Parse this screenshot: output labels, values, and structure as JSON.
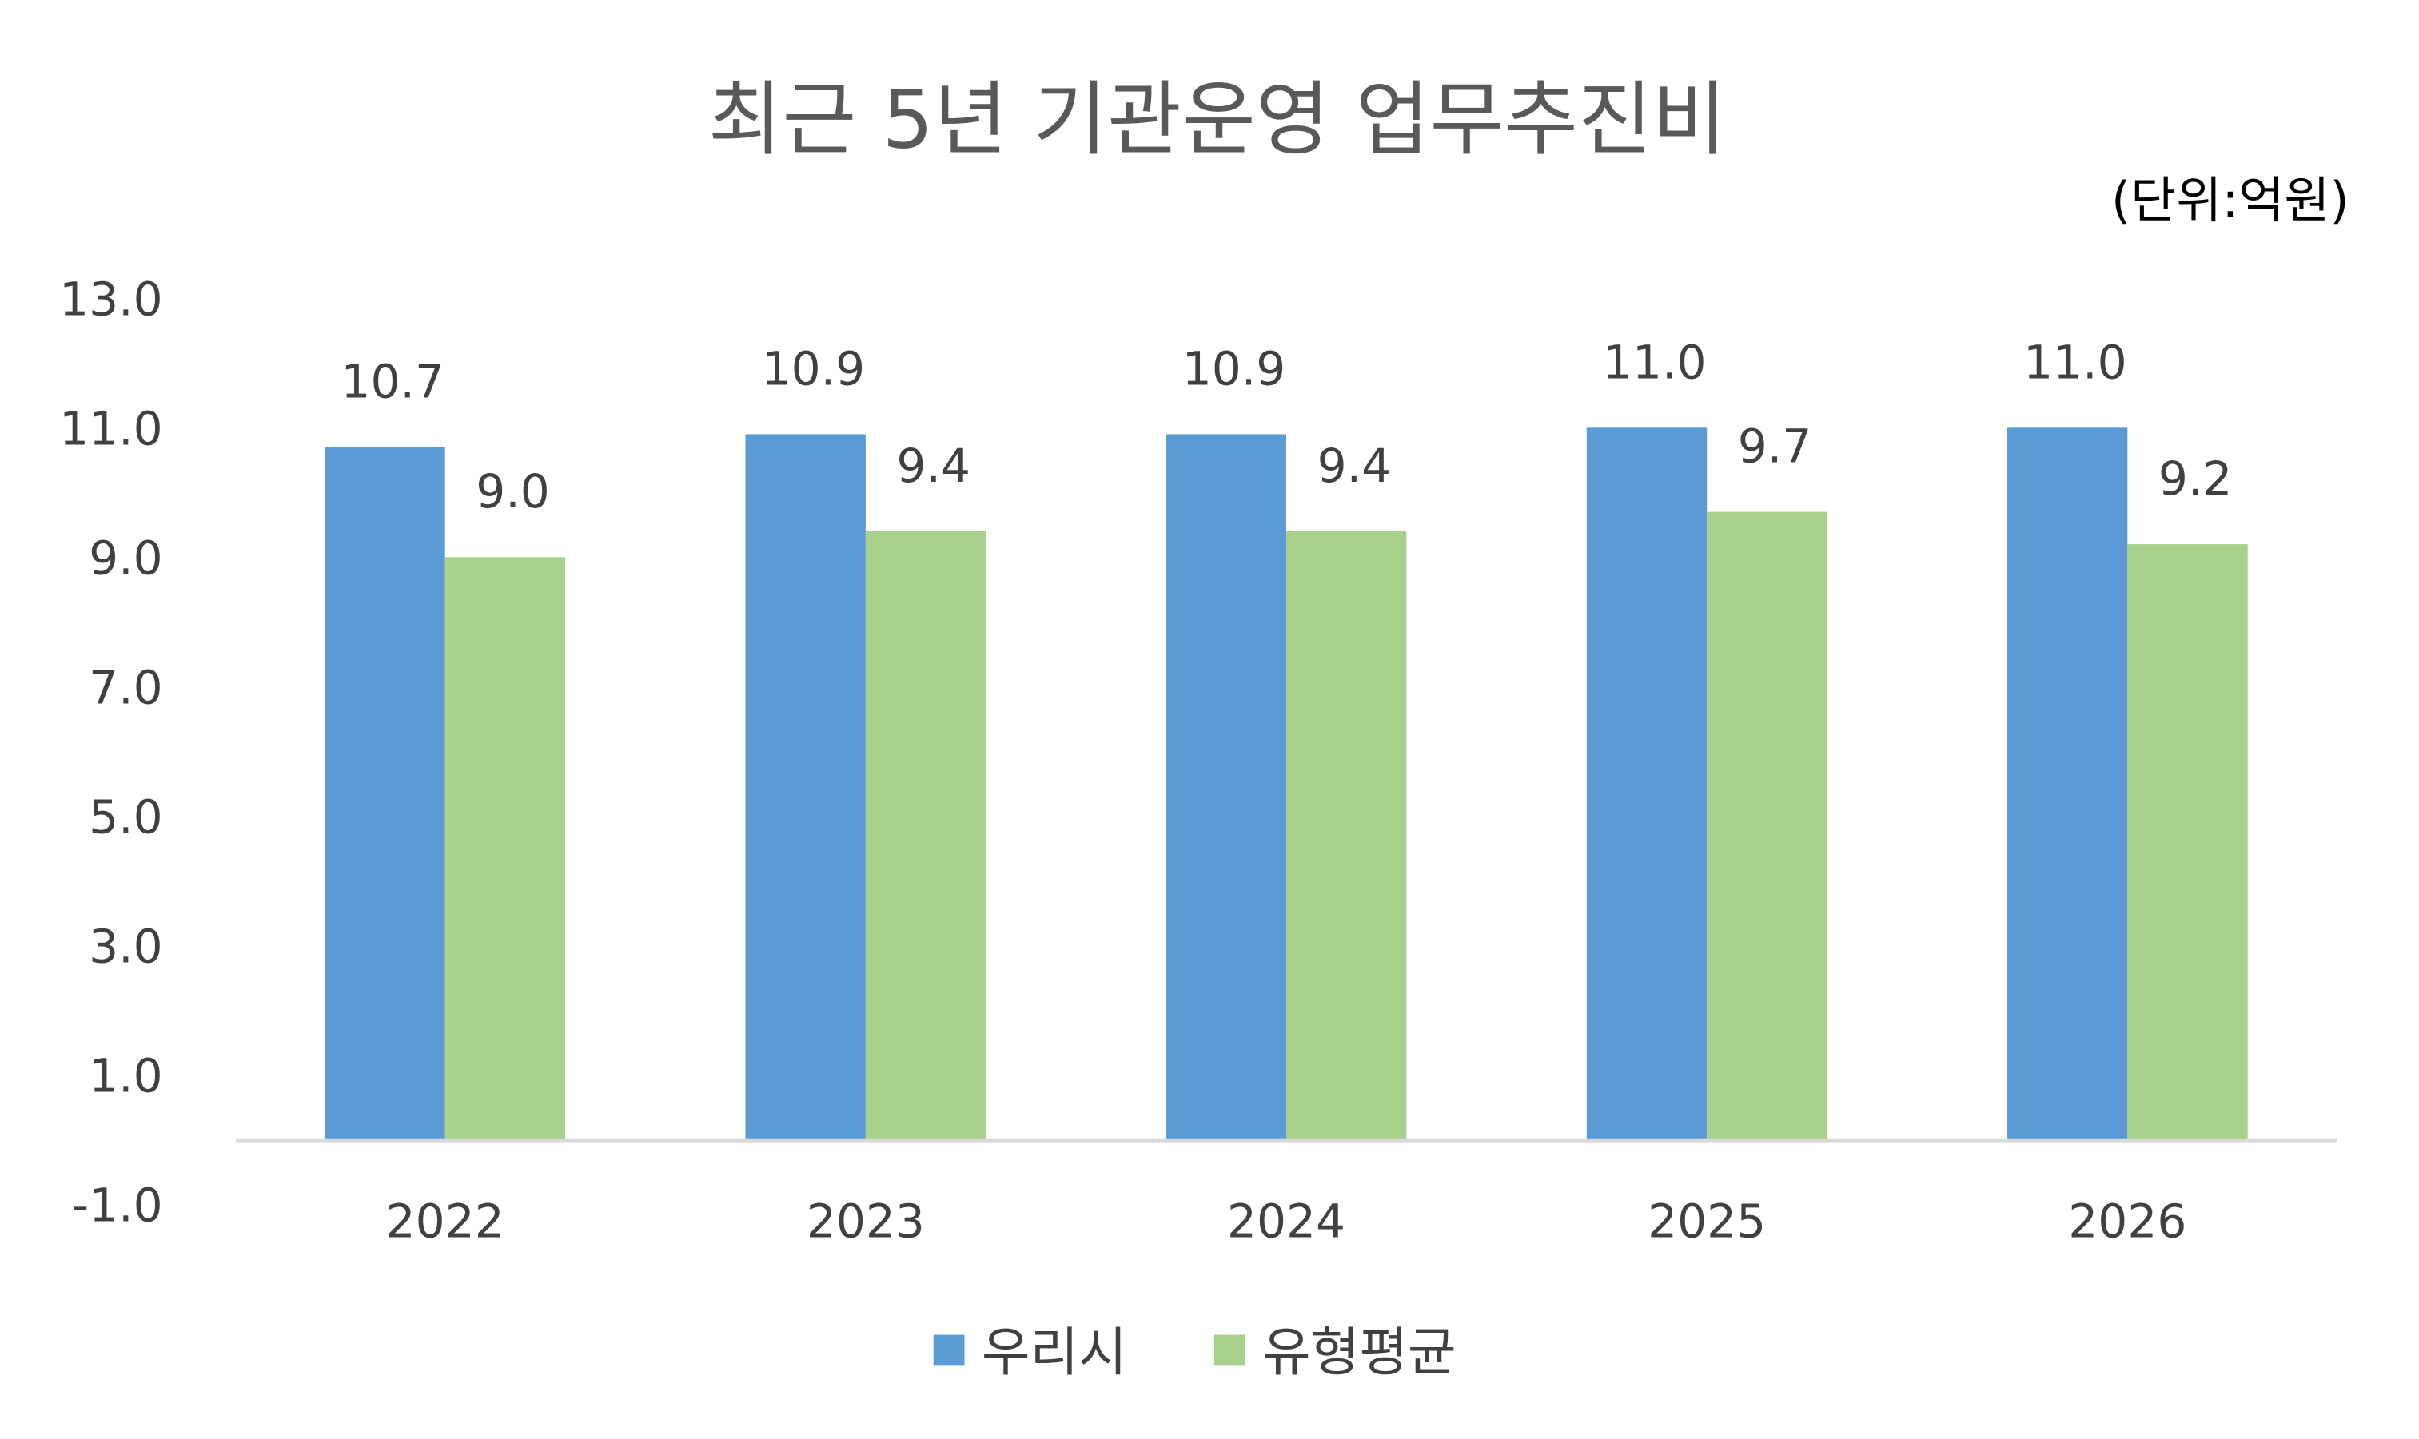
{
  "chart_data": {
    "type": "bar",
    "title": "최근 5년 기관운영 업무추진비",
    "unit_label": "(단위:억원)",
    "categories": [
      "2022",
      "2023",
      "2024",
      "2025",
      "2026"
    ],
    "series": [
      {
        "name": "우리시",
        "color": "#5b9bd5",
        "values": [
          10.7,
          10.9,
          10.9,
          11.0,
          11.0
        ],
        "labels": [
          "10.7",
          "10.9",
          "10.9",
          "11.0",
          "11.0"
        ]
      },
      {
        "name": "유형평균",
        "color": "#a9d18e",
        "values": [
          9.0,
          9.4,
          9.4,
          9.7,
          9.2
        ],
        "labels": [
          "9.0",
          "9.4",
          "9.4",
          "9.7",
          "9.2"
        ]
      }
    ],
    "yticks": [
      "13.0",
      "11.0",
      "9.0",
      "7.0",
      "5.0",
      "3.0",
      "1.0",
      "-1.0"
    ],
    "ylim": [
      -1,
      13
    ],
    "grid": false,
    "legend": "bottom"
  }
}
